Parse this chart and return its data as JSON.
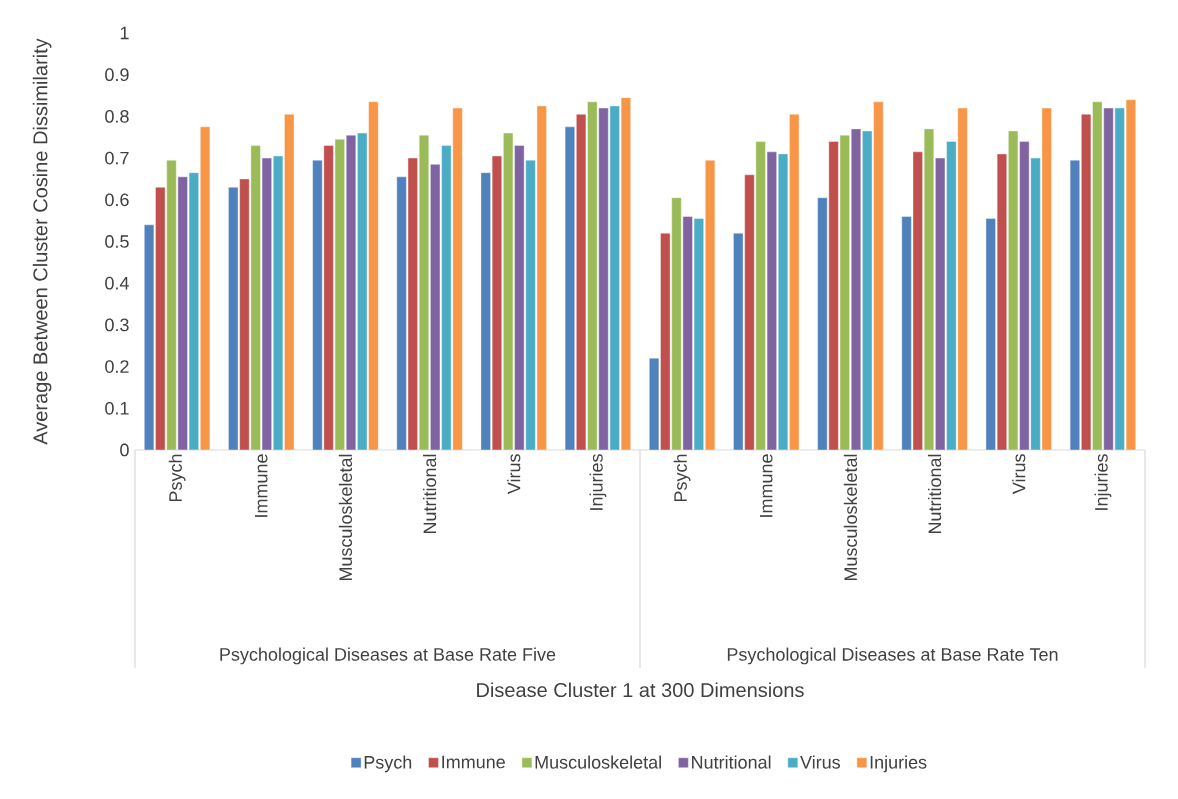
{
  "chart_data": {
    "type": "bar",
    "categories": [
      "Psych",
      "Immune",
      "Musculoskeletal",
      "Nutritional",
      "Virus",
      "Injuries",
      "Psych",
      "Immune",
      "Musculoskeletal",
      "Nutritional",
      "Virus",
      "Injuries"
    ],
    "annotations": [
      "Psychological Diseases at Base Rate Five",
      "Psychological Diseases at Base Rate Ten",
      "Disease Cluster 1 at 300 Dimensions"
    ],
    "ylabel": "Average Between Cluster Cosine Dissimilarity",
    "ylim": [
      0,
      1
    ],
    "yticks": [
      0,
      0.1,
      0.2,
      0.3,
      0.4,
      0.5,
      0.6,
      0.7,
      0.8,
      0.9,
      1
    ],
    "legend": "bottom",
    "series": [
      {
        "name": "Psych",
        "color": "#4f81bd",
        "values": [
          0.54,
          0.63,
          0.695,
          0.655,
          0.665,
          0.775,
          0.22,
          0.52,
          0.605,
          0.56,
          0.555,
          0.695
        ]
      },
      {
        "name": "Immune",
        "color": "#c0504d",
        "values": [
          0.63,
          0.65,
          0.73,
          0.7,
          0.705,
          0.805,
          0.52,
          0.66,
          0.74,
          0.715,
          0.71,
          0.805
        ]
      },
      {
        "name": "Musculoskeletal",
        "color": "#9bbb59",
        "values": [
          0.695,
          0.73,
          0.745,
          0.755,
          0.76,
          0.835,
          0.605,
          0.74,
          0.755,
          0.77,
          0.765,
          0.835
        ]
      },
      {
        "name": "Nutritional",
        "color": "#8064a2",
        "values": [
          0.655,
          0.7,
          0.755,
          0.685,
          0.73,
          0.82,
          0.56,
          0.715,
          0.77,
          0.7,
          0.74,
          0.82
        ]
      },
      {
        "name": "Virus",
        "color": "#4bacc6",
        "values": [
          0.665,
          0.705,
          0.76,
          0.73,
          0.695,
          0.825,
          0.555,
          0.71,
          0.765,
          0.74,
          0.7,
          0.82
        ]
      },
      {
        "name": "Injuries",
        "color": "#f79646",
        "values": [
          0.775,
          0.805,
          0.835,
          0.82,
          0.825,
          0.845,
          0.695,
          0.805,
          0.835,
          0.82,
          0.82,
          0.84
        ]
      }
    ]
  }
}
